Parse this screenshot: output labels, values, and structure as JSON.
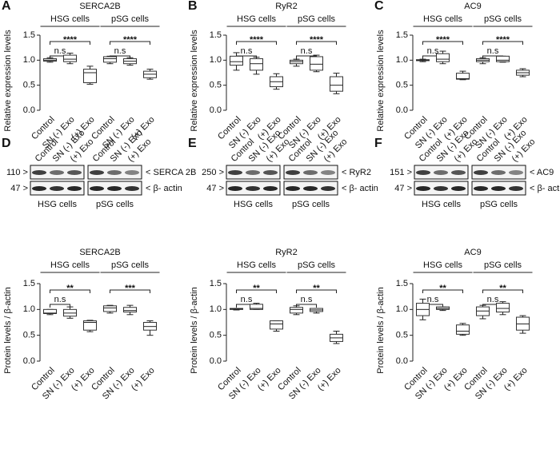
{
  "chart_data": [
    {
      "type": "box",
      "panel": "A",
      "title": "SERCA2B",
      "ylabel": "Relative expression levels",
      "categories": [
        "Control",
        "SN (-) Exo",
        "(+) Exo",
        "Control",
        "SN (-) Exo",
        "(+) Exo"
      ],
      "groups": [
        {
          "label": "HSG cells",
          "significance": "****",
          "ns": "n.s"
        },
        {
          "label": "pSG cells",
          "significance": "****",
          "ns": "n.s"
        }
      ],
      "boxes": [
        {
          "min": 0.96,
          "q1": 0.98,
          "median": 1.0,
          "q3": 1.03,
          "max": 1.05
        },
        {
          "min": 0.93,
          "q1": 0.97,
          "median": 1.02,
          "q3": 1.1,
          "max": 1.14
        },
        {
          "min": 0.52,
          "q1": 0.55,
          "median": 0.75,
          "q3": 0.82,
          "max": 0.88
        },
        {
          "min": 0.93,
          "q1": 0.96,
          "median": 1.03,
          "q3": 1.07,
          "max": 1.08
        },
        {
          "min": 0.9,
          "q1": 0.93,
          "median": 0.98,
          "q3": 1.03,
          "max": 1.05
        },
        {
          "min": 0.62,
          "q1": 0.65,
          "median": 0.72,
          "q3": 0.78,
          "max": 0.82
        }
      ],
      "ylim": [
        0,
        1.5
      ],
      "yticks": [
        {
          "value": 0,
          "label": "0.0"
        },
        {
          "value": 0.5,
          "label": "0.5"
        },
        {
          "value": 1,
          "label": "1.0"
        },
        {
          "value": 1.5,
          "label": "1.5"
        }
      ],
      "color": "#333333"
    },
    {
      "type": "box",
      "panel": "B",
      "title": "RyR2",
      "ylabel": "Relative expression levels",
      "categories": [
        "Control",
        "SN (-) Exo",
        "(+) Exo",
        "Control",
        "SN (-) Exo",
        "(+) Exo"
      ],
      "groups": [
        {
          "label": "HSG cells",
          "significance": "****",
          "ns": "n.s"
        },
        {
          "label": "pSG cells",
          "significance": "****",
          "ns": "n.s"
        }
      ],
      "boxes": [
        {
          "min": 0.8,
          "q1": 0.9,
          "median": 0.97,
          "q3": 1.08,
          "max": 1.15
        },
        {
          "min": 0.72,
          "q1": 0.8,
          "median": 0.93,
          "q3": 1.03,
          "max": 1.06
        },
        {
          "min": 0.42,
          "q1": 0.47,
          "median": 0.57,
          "q3": 0.67,
          "max": 0.73
        },
        {
          "min": 0.88,
          "q1": 0.93,
          "median": 0.97,
          "q3": 1.0,
          "max": 1.02
        },
        {
          "min": 0.77,
          "q1": 0.8,
          "median": 0.92,
          "q3": 1.07,
          "max": 1.1
        },
        {
          "min": 0.33,
          "q1": 0.38,
          "median": 0.5,
          "q3": 0.67,
          "max": 0.74
        }
      ],
      "ylim": [
        0,
        1.5
      ],
      "yticks": [
        {
          "value": 0,
          "label": "0.0"
        },
        {
          "value": 0.5,
          "label": "0.5"
        },
        {
          "value": 1,
          "label": "1.0"
        },
        {
          "value": 1.5,
          "label": "1.5"
        }
      ],
      "color": "#333333"
    },
    {
      "type": "box",
      "panel": "C",
      "title": "AC9",
      "ylabel": "Relative expression levels",
      "categories": [
        "Control",
        "SN (-) Exo",
        "(+) Exo",
        "Control",
        "SN (-) Exo",
        "(+) Exo"
      ],
      "groups": [
        {
          "label": "HSG cells",
          "significance": "****",
          "ns": "n.s"
        },
        {
          "label": "pSG cells",
          "significance": "****",
          "ns": "n.s"
        }
      ],
      "boxes": [
        {
          "min": 0.97,
          "q1": 0.99,
          "median": 1.0,
          "q3": 1.01,
          "max": 1.02
        },
        {
          "min": 0.93,
          "q1": 0.97,
          "median": 1.02,
          "q3": 1.13,
          "max": 1.18
        },
        {
          "min": 0.61,
          "q1": 0.62,
          "median": 0.63,
          "q3": 0.74,
          "max": 0.78
        },
        {
          "min": 0.93,
          "q1": 0.97,
          "median": 1.0,
          "q3": 1.03,
          "max": 1.05
        },
        {
          "min": 0.96,
          "q1": 0.97,
          "median": 1.0,
          "q3": 1.08,
          "max": 1.08
        },
        {
          "min": 0.67,
          "q1": 0.7,
          "median": 0.75,
          "q3": 0.8,
          "max": 0.83
        }
      ],
      "ylim": [
        0,
        1.5
      ],
      "yticks": [
        {
          "value": 0,
          "label": "0.0"
        },
        {
          "value": 0.5,
          "label": "0.5"
        },
        {
          "value": 1,
          "label": "1.0"
        },
        {
          "value": 1.5,
          "label": "1.5"
        }
      ],
      "color": "#333333"
    },
    {
      "type": "box",
      "title": "SERCA2B",
      "ylabel": "Protein levels / β-actin",
      "categories": [
        "Control",
        "SN (-) Exo",
        "(+) Exo",
        "Control",
        "SN (-) Exo",
        "(+) Exo"
      ],
      "groups": [
        {
          "label": "HSG cells",
          "significance": "**",
          "ns": "n.s"
        },
        {
          "label": "pSG cells",
          "significance": "***"
        }
      ],
      "boxes": [
        {
          "min": 0.9,
          "q1": 0.92,
          "median": 0.93,
          "q3": 1.0,
          "max": 1.0
        },
        {
          "min": 0.83,
          "q1": 0.87,
          "median": 0.93,
          "q3": 1.0,
          "max": 1.05
        },
        {
          "min": 0.57,
          "q1": 0.6,
          "median": 0.75,
          "q3": 0.78,
          "max": 0.79
        },
        {
          "min": 0.93,
          "q1": 0.96,
          "median": 1.03,
          "q3": 1.07,
          "max": 1.08
        },
        {
          "min": 0.9,
          "q1": 0.95,
          "median": 0.98,
          "q3": 1.04,
          "max": 1.08
        },
        {
          "min": 0.5,
          "q1": 0.6,
          "median": 0.67,
          "q3": 0.75,
          "max": 0.78
        }
      ],
      "ylim": [
        0,
        1.5
      ],
      "yticks": [
        {
          "value": 0,
          "label": "0.0"
        },
        {
          "value": 0.5,
          "label": "0.5"
        },
        {
          "value": 1,
          "label": "1.0"
        },
        {
          "value": 1.5,
          "label": "1.5"
        }
      ],
      "color": "#333333"
    },
    {
      "type": "box",
      "title": "RyR2",
      "ylabel": "Protein levels / β-actin",
      "categories": [
        "Control",
        "SN (-) Exo",
        "(+) Exo",
        "Control",
        "SN (-) Exo",
        "(+) Exo"
      ],
      "groups": [
        {
          "label": "HSG cells",
          "significance": "**",
          "ns": "n.s"
        },
        {
          "label": "pSG cells",
          "significance": "**",
          "ns": "n.s"
        }
      ],
      "boxes": [
        {
          "min": 0.99,
          "q1": 1.0,
          "median": 1.01,
          "q3": 1.02,
          "max": 1.02
        },
        {
          "min": 1.0,
          "q1": 1.0,
          "median": 1.02,
          "q3": 1.1,
          "max": 1.12
        },
        {
          "min": 0.58,
          "q1": 0.62,
          "median": 0.72,
          "q3": 0.78,
          "max": 0.78
        },
        {
          "min": 0.9,
          "q1": 0.93,
          "median": 1.0,
          "q3": 1.04,
          "max": 1.07
        },
        {
          "min": 0.93,
          "q1": 0.96,
          "median": 0.99,
          "q3": 1.02,
          "max": 1.02
        },
        {
          "min": 0.34,
          "q1": 0.38,
          "median": 0.45,
          "q3": 0.52,
          "max": 0.58
        }
      ],
      "ylim": [
        0,
        1.5
      ],
      "yticks": [
        {
          "value": 0,
          "label": "0.0"
        },
        {
          "value": 0.5,
          "label": "0.5"
        },
        {
          "value": 1,
          "label": "1.0"
        },
        {
          "value": 1.5,
          "label": "1.5"
        }
      ],
      "color": "#333333"
    },
    {
      "type": "box",
      "title": "AC9",
      "ylabel": "Protein levels / β-actin",
      "categories": [
        "Control",
        "SN (-) Exo",
        "(+) Exo",
        "Control",
        "SN (-) Exo",
        "(+) Exo"
      ],
      "groups": [
        {
          "label": "HSG cells",
          "significance": "**",
          "ns": "n.s"
        },
        {
          "label": "pSG cells",
          "significance": "**",
          "ns": "n.s"
        }
      ],
      "boxes": [
        {
          "min": 0.8,
          "q1": 0.88,
          "median": 1.0,
          "q3": 1.12,
          "max": 1.2
        },
        {
          "min": 0.98,
          "q1": 1.0,
          "median": 1.02,
          "q3": 1.05,
          "max": 1.05
        },
        {
          "min": 0.5,
          "q1": 0.52,
          "median": 0.58,
          "q3": 0.7,
          "max": 0.73
        },
        {
          "min": 0.82,
          "q1": 0.88,
          "median": 0.97,
          "q3": 1.05,
          "max": 1.08
        },
        {
          "min": 0.9,
          "q1": 0.95,
          "median": 1.02,
          "q3": 1.12,
          "max": 1.15
        },
        {
          "min": 0.54,
          "q1": 0.6,
          "median": 0.72,
          "q3": 0.85,
          "max": 0.88
        }
      ],
      "ylim": [
        0,
        1.5
      ],
      "yticks": [
        {
          "value": 0,
          "label": "0.0"
        },
        {
          "value": 0.5,
          "label": "0.5"
        },
        {
          "value": 1,
          "label": "1.0"
        },
        {
          "value": 1.5,
          "label": "1.5"
        }
      ],
      "color": "#333333"
    }
  ],
  "blots": [
    {
      "panel": "D",
      "lanes": [
        "Control",
        "SN (-) Exo",
        "(+) Exo",
        "Control",
        "SN (-) Exo",
        "(+) Exo"
      ],
      "groups": [
        "HSG cells",
        "pSG cells"
      ],
      "rows": [
        {
          "marker": "110 >",
          "label": "< SERCA 2B"
        },
        {
          "marker": "47 >",
          "label": "< β- actin"
        }
      ]
    },
    {
      "panel": "E",
      "lanes": [
        "Control",
        "SN (-) Exo",
        "(+) Exo",
        "Control",
        "SN (-) Exo",
        "(+) Exo"
      ],
      "groups": [
        "HSG cells",
        "pSG cells"
      ],
      "rows": [
        {
          "marker": "250 >",
          "label": "< RyR2"
        },
        {
          "marker": "47 >",
          "label": "< β- actin"
        }
      ]
    },
    {
      "panel": "F",
      "lanes": [
        "Control",
        "SN (-) Exo",
        "(+) Exo",
        "Control",
        "SN (-) Exo",
        "(+) Exo"
      ],
      "groups": [
        "HSG cells",
        "pSG cells"
      ],
      "rows": [
        {
          "marker": "151 >",
          "label": "< AC9"
        },
        {
          "marker": "47 >",
          "label": "< β- actin"
        }
      ]
    }
  ]
}
